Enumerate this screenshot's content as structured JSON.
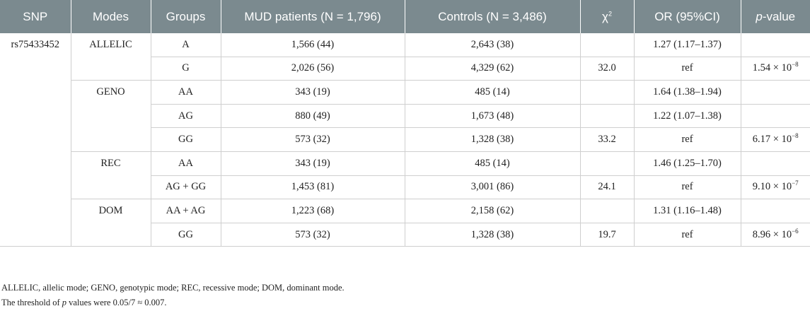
{
  "header": {
    "snp": "SNP",
    "modes": "Modes",
    "groups": "Groups",
    "mud": "MUD patients (N = 1,796)",
    "controls": "Controls (N = 3,486)",
    "chi_base": "χ",
    "chi_sup": "2",
    "or": "OR (95%CI)",
    "p_italic": "p",
    "p_rest": "-value"
  },
  "snp_id": "rs75433452",
  "rows": [
    {
      "mode": "ALLELIC",
      "group": "A",
      "mud": "1,566 (44)",
      "controls": "2,643 (38)",
      "chi": "",
      "or": "1.27 (1.17–1.37)",
      "p_base": "",
      "p_exp": ""
    },
    {
      "mode": "",
      "group": "G",
      "mud": "2,026 (56)",
      "controls": "4,329 (62)",
      "chi": "32.0",
      "or": "ref",
      "p_base": "1.54 × 10",
      "p_exp": "−8"
    },
    {
      "mode": "GENO",
      "group": "AA",
      "mud": "343 (19)",
      "controls": "485 (14)",
      "chi": "",
      "or": "1.64 (1.38–1.94)",
      "p_base": "",
      "p_exp": ""
    },
    {
      "mode": "",
      "group": "AG",
      "mud": "880 (49)",
      "controls": "1,673 (48)",
      "chi": "",
      "or": "1.22 (1.07–1.38)",
      "p_base": "",
      "p_exp": ""
    },
    {
      "mode": "",
      "group": "GG",
      "mud": "573 (32)",
      "controls": "1,328 (38)",
      "chi": "33.2",
      "or": "ref",
      "p_base": "6.17 × 10",
      "p_exp": "−8"
    },
    {
      "mode": "REC",
      "group": "AA",
      "mud": "343 (19)",
      "controls": "485 (14)",
      "chi": "",
      "or": "1.46 (1.25–1.70)",
      "p_base": "",
      "p_exp": ""
    },
    {
      "mode": "",
      "group": "AG + GG",
      "mud": "1,453 (81)",
      "controls": "3,001 (86)",
      "chi": "24.1",
      "or": "ref",
      "p_base": "9.10 × 10",
      "p_exp": "−7"
    },
    {
      "mode": "DOM",
      "group": "AA + AG",
      "mud": "1,223 (68)",
      "controls": "2,158 (62)",
      "chi": "",
      "or": "1.31 (1.16–1.48)",
      "p_base": "",
      "p_exp": ""
    },
    {
      "mode": "",
      "group": "GG",
      "mud": "573 (32)",
      "controls": "1,328 (38)",
      "chi": "19.7",
      "or": "ref",
      "p_base": "8.96 × 10",
      "p_exp": "−6"
    }
  ],
  "footnotes": {
    "line1": "ALLELIC, allelic mode; GENO, genotypic mode; REC, recessive mode; DOM, dominant mode.",
    "line2_pre": "The threshold of ",
    "line2_italic": "p",
    "line2_post": " values were 0.05/7 ≈ 0.007."
  }
}
